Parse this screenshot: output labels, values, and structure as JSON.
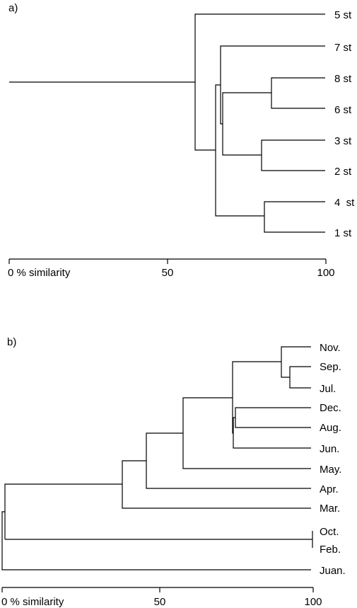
{
  "panel_a": {
    "label": "a)",
    "leaves": [
      "5 st",
      "7 st",
      "8 st",
      "6 st",
      "3 st",
      "2 st",
      "4  st",
      "1 st"
    ],
    "axis": {
      "range": [
        0,
        100
      ],
      "ticks": [
        {
          "value": 0,
          "label": "0 % similarity"
        },
        {
          "value": 50,
          "label": "50"
        },
        {
          "value": 100,
          "label": "100"
        }
      ]
    },
    "merges": [
      {
        "left": "8 st",
        "right": "6 st",
        "similarity": 83
      },
      {
        "left": "3 st",
        "right": "2 st",
        "similarity": 80
      },
      {
        "left": "4  st",
        "right": "1 st",
        "similarity": 81
      },
      {
        "left": "8-6 cluster",
        "right": "3-2 cluster",
        "similarity": 67
      },
      {
        "left": "7 st",
        "right": "8-6-3-2 cluster",
        "similarity": 67
      },
      {
        "left": "7-8-6-3-2 cluster",
        "right": "4-1 cluster",
        "similarity": 65
      },
      {
        "left": "5 st",
        "right": "remaining stations",
        "similarity": 59
      }
    ]
  },
  "panel_b": {
    "label": "b)",
    "leaves": [
      "Nov.",
      "Sep.",
      "Jul.",
      "Dec.",
      "Aug.",
      "Jun.",
      "May.",
      "Apr.",
      "Mar.",
      "Oct.",
      "Feb.",
      "Juan."
    ],
    "axis": {
      "range": [
        0,
        100
      ],
      "ticks": [
        {
          "value": 0,
          "label": "0 % similarity"
        },
        {
          "value": 50,
          "label": "50"
        },
        {
          "value": 100,
          "label": "100"
        }
      ]
    },
    "merges": [
      {
        "left": "Sep.",
        "right": "Jul.",
        "similarity": 93
      },
      {
        "left": "Nov.",
        "right": "Sep.-Jul. cluster",
        "similarity": 90
      },
      {
        "left": "Dec.",
        "right": "Aug.",
        "similarity": 75
      },
      {
        "left": "Dec.-Aug. cluster",
        "right": "Jun.",
        "similarity": 74
      },
      {
        "left": "Nov.-Sep.-Jul. cluster",
        "right": "Dec.-Aug.-Jun. cluster",
        "similarity": 74
      },
      {
        "left": "summer-autumn cluster",
        "right": "May.",
        "similarity": 58
      },
      {
        "left": "summer-autumn-May cluster",
        "right": "Apr.",
        "similarity": 46
      },
      {
        "left": "Apr. cluster",
        "right": "Mar.",
        "similarity": 38
      },
      {
        "left": "Oct.",
        "right": "Feb.",
        "similarity": 100
      },
      {
        "left": "Mar. cluster",
        "right": "Oct.-Feb. cluster",
        "similarity": 1
      },
      {
        "left": "all other months",
        "right": "Juan.",
        "similarity": 0
      }
    ]
  }
}
